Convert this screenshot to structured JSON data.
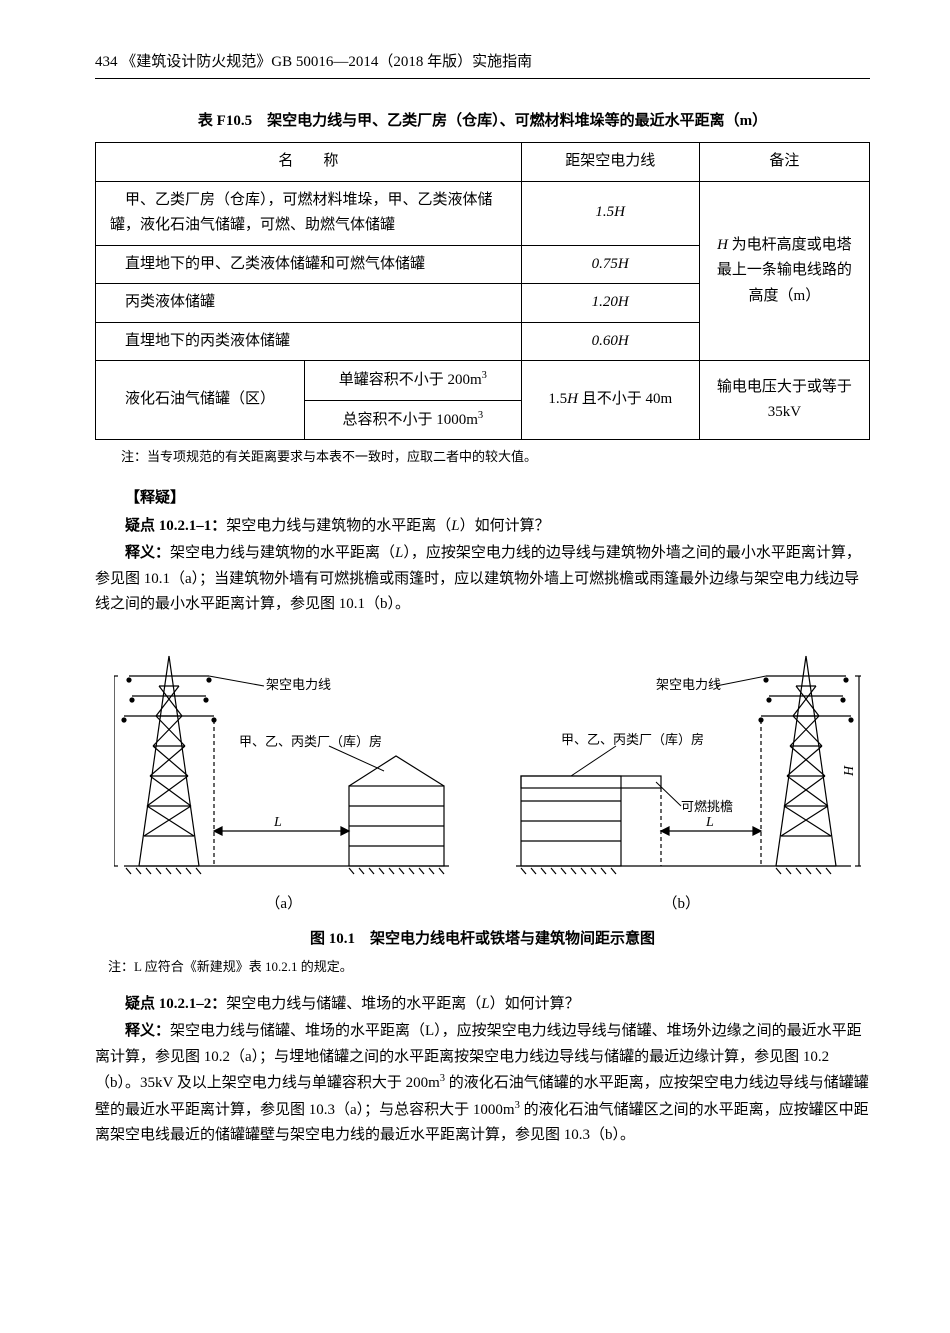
{
  "header": "434 《建筑设计防火规范》GB 50016—2014（2018 年版）实施指南",
  "table": {
    "caption": "表 F10.5　架空电力线与甲、乙类厂房（仓库）、可燃材料堆垛等的最近水平距离（m）",
    "head_name": "名　　称",
    "head_dist": "距架空电力线",
    "head_remark": "备注",
    "r1_name": "　甲、乙类厂房（仓库），可燃材料堆垛，甲、乙类液体储罐，液化石油气储罐，可燃、助燃气体储罐",
    "r1_dist": "1.5H",
    "r2_name": "　直埋地下的甲、乙类液体储罐和可燃气体储罐",
    "r2_dist": "0.75H",
    "r3_name": "　丙类液体储罐",
    "r3_dist": "1.20H",
    "r4_name": "　直埋地下的丙类液体储罐",
    "r4_dist": "0.60H",
    "r5_name": "　液化石油气储罐（区）",
    "r5_sub1": "单罐容积不小于 200m³",
    "r5_sub2": "总容积不小于 1000m³",
    "r5_dist": "1.5H 且不小于 40m",
    "remark1": "H 为电杆高度或电塔最上一条输电线路的高度（m）",
    "remark2": "输电电压大于或等于 35kV",
    "note": "注：当专项规范的有关距离要求与本表不一致时，应取二者中的较大值。"
  },
  "clar1": {
    "head": "【释疑】",
    "q_title": "疑点 10.2.1–1：",
    "q_body": "架空电力线与建筑物的水平距离（L）如何计算？",
    "a_title": "释义：",
    "a_body": "架空电力线与建筑物的水平距离（L），应按架空电力线的边导线与建筑物外墙之间的最小水平距离计算，参见图 10.1（a）；当建筑物外墙有可燃挑檐或雨篷时，应以建筑物外墙上可燃挑檐或雨篷最外边缘与架空电力线边导线之间的最小水平距离计算，参见图 10.1（b）。"
  },
  "fig": {
    "label_a": "（a）",
    "label_b": "（b）",
    "caption": "图 10.1　架空电力线电杆或铁塔与建筑物间距示意图",
    "note": "注：L 应符合《新建规》表 10.2.1 的规定。",
    "powerline": "架空电力线",
    "building": "甲、乙、丙类厂（库）房",
    "eave": "可燃挑檐",
    "H": "H",
    "L": "L"
  },
  "clar2": {
    "q_title": "疑点 10.2.1–2：",
    "q_body": "架空电力线与储罐、堆场的水平距离（L）如何计算？",
    "a_title": "释义：",
    "a_body": "架空电力线与储罐、堆场的水平距离（L），应按架空电力线边导线与储罐、堆场外边缘之间的最近水平距离计算，参见图 10.2（a）；与埋地储罐之间的水平距离按架空电力线边导线与储罐的最近边缘计算，参见图 10.2（b）。35kV 及以上架空电力线与单罐容积大于 200m³ 的液化石油气储罐的水平距离，应按架空电力线边导线与储罐罐壁的最近水平距离计算，参见图 10.3（a）；与总容积大于 1000m³ 的液化石油气储罐区之间的水平距离，应按罐区中距离架空电线最近的储罐罐壁与架空电力线的最近水平距离计算，参见图 10.3（b）。"
  },
  "colors": {
    "line": "#000000",
    "bg": "#ffffff"
  }
}
